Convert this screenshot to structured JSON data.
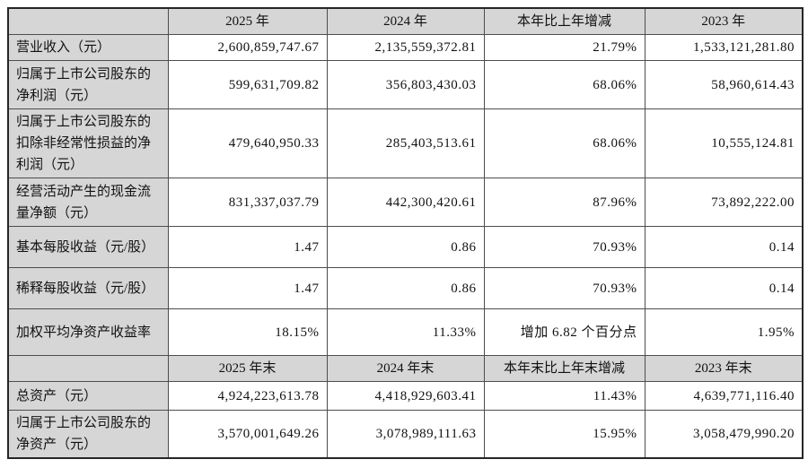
{
  "colors": {
    "header_bg": "#d6d6d6",
    "border": "#4d4d4d",
    "outer_border": "#262626",
    "text": "#111111",
    "cell_bg": "#ffffff"
  },
  "table": {
    "sections": [
      {
        "header": [
          "",
          "2025 年",
          "2024 年",
          "本年比上年增减",
          "2023 年"
        ],
        "rows": [
          [
            "营业收入（元）",
            "2,600,859,747.67",
            "2,135,559,372.81",
            "21.79%",
            "1,533,121,281.80"
          ],
          [
            "归属于上市公司股东的净利润（元）",
            "599,631,709.82",
            "356,803,430.03",
            "68.06%",
            "58,960,614.43"
          ],
          [
            "归属于上市公司股东的扣除非经常性损益的净利润（元）",
            "479,640,950.33",
            "285,403,513.61",
            "68.06%",
            "10,555,124.81"
          ],
          [
            "经营活动产生的现金流量净额（元）",
            "831,337,037.79",
            "442,300,420.61",
            "87.96%",
            "73,892,222.00"
          ],
          [
            "基本每股收益（元/股）",
            "1.47",
            "0.86",
            "70.93%",
            "0.14"
          ],
          [
            "稀释每股收益（元/股）",
            "1.47",
            "0.86",
            "70.93%",
            "0.14"
          ],
          [
            "加权平均净资产收益率",
            "18.15%",
            "11.33%",
            "增加 6.82 个百分点",
            "1.95%"
          ]
        ]
      },
      {
        "header": [
          "",
          "2025 年末",
          "2024 年末",
          "本年末比上年末增减",
          "2023 年末"
        ],
        "rows": [
          [
            "总资产（元）",
            "4,924,223,613.78",
            "4,418,929,603.41",
            "11.43%",
            "4,639,771,116.40"
          ],
          [
            "归属于上市公司股东的净资产（元）",
            "3,570,001,649.26",
            "3,078,989,111.63",
            "15.95%",
            "3,058,479,990.20"
          ]
        ]
      }
    ]
  }
}
